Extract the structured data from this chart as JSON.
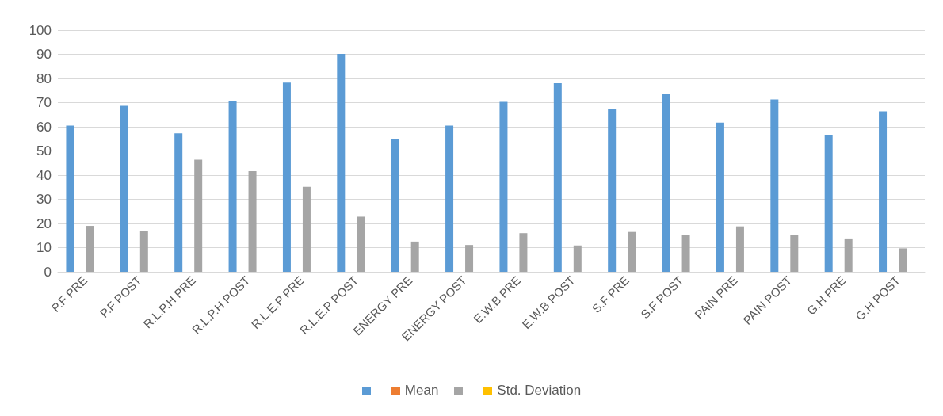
{
  "chart_data": {
    "type": "bar",
    "categories": [
      "P.F PRE",
      "P.F POST",
      "R.L.P.H PRE",
      "R.L.P.H POST",
      "R.L.E.P PRE",
      "R.L.E.P POST",
      "ENERGY PRE",
      "ENERGY POST",
      "E.W.B PRE",
      "E.W.B POST",
      "S.F PRE",
      "S.F POST",
      "PAIN PRE",
      "PAIN POST",
      "G.H PRE",
      "G.H POST"
    ],
    "series": [
      {
        "color": "#5b9bd5",
        "values": [
          60.5,
          68.7,
          57.3,
          70.5,
          78.3,
          90.2,
          55,
          60.5,
          70.3,
          78,
          67.5,
          73.5,
          61.7,
          71.3,
          56.7,
          66.4
        ]
      },
      {
        "name": "Mean",
        "color": "#ed7d31",
        "values": [
          null,
          null,
          null,
          null,
          null,
          null,
          null,
          null,
          null,
          null,
          null,
          null,
          null,
          null,
          null,
          null
        ]
      },
      {
        "color": "#a5a5a5",
        "values": [
          19,
          16.9,
          46.4,
          41.6,
          35.2,
          22.8,
          12.5,
          11.1,
          16,
          10.9,
          16.5,
          15.2,
          18.8,
          15.4,
          13.8,
          9.7
        ]
      },
      {
        "name": "Std. Deviation",
        "color": "#ffc000",
        "values": [
          null,
          null,
          null,
          null,
          null,
          null,
          null,
          null,
          null,
          null,
          null,
          null,
          null,
          null,
          null,
          null
        ]
      }
    ],
    "ylim": [
      0,
      100
    ],
    "yticks": [
      0,
      10,
      20,
      30,
      40,
      50,
      60,
      70,
      80,
      90,
      100
    ],
    "grid": "y",
    "legend": "bottom"
  }
}
